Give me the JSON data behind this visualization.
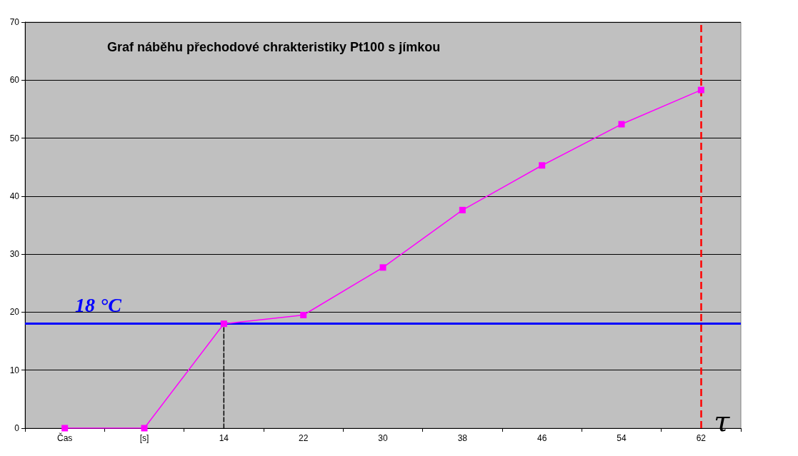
{
  "chart_data": {
    "type": "line",
    "title": "Graf náběhu přechodové chrakteristiky Pt100 s jímkou",
    "categories": [
      "Čas",
      "[s]",
      "14",
      "22",
      "30",
      "38",
      "46",
      "54",
      "62"
    ],
    "series": [
      {
        "color": "#ff00ff",
        "values": [
          0,
          0,
          18,
          19.5,
          27.7,
          37.6,
          45.3,
          52.4,
          58.3
        ],
        "marker": "square",
        "line_style": "solid"
      },
      {
        "color": "#000000",
        "x": [
          "14",
          "14"
        ],
        "values": [
          0,
          18
        ],
        "marker": "none",
        "line_style": "dashed"
      }
    ],
    "ylim": [
      0,
      70
    ],
    "yticks": [
      0,
      10,
      20,
      30,
      40,
      50,
      60,
      70
    ],
    "grid": "y",
    "ref_lines": [
      {
        "axis": "y",
        "value": 18,
        "label": "18 °C",
        "color": "#0000ff",
        "line_style": "solid"
      },
      {
        "axis": "x",
        "value": "62",
        "label": "τ",
        "color": "#ff0000",
        "line_style": "dashed"
      }
    ]
  }
}
